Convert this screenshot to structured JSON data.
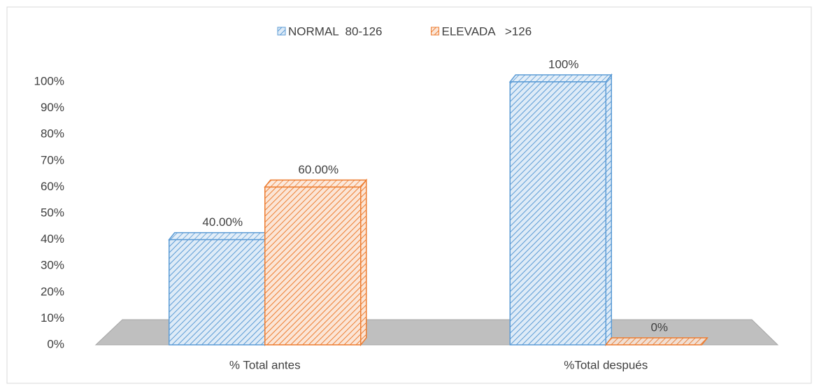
{
  "chart_data": {
    "type": "bar3d",
    "categories": [
      "% Total antes",
      "%Total después"
    ],
    "series": [
      {
        "name": "NORMAL  80-126",
        "color": "#5b9bd5",
        "values": [
          40,
          100
        ],
        "value_labels": [
          "40.00%",
          "100%"
        ]
      },
      {
        "name": "ELEVADA   >126",
        "color": "#ed7d31",
        "values": [
          60,
          0
        ],
        "value_labels": [
          "60.00%",
          "0%"
        ]
      }
    ],
    "ylim": [
      0,
      100
    ],
    "yticks": [
      {
        "value": 0,
        "label": "0%"
      },
      {
        "value": 10,
        "label": "10%"
      },
      {
        "value": 20,
        "label": "20%"
      },
      {
        "value": 30,
        "label": "30%"
      },
      {
        "value": 40,
        "label": "40%"
      },
      {
        "value": 50,
        "label": "50%"
      },
      {
        "value": 60,
        "label": "60%"
      },
      {
        "value": 70,
        "label": "70%"
      },
      {
        "value": 80,
        "label": "80%"
      },
      {
        "value": 90,
        "label": "90%"
      },
      {
        "value": 100,
        "label": "100%"
      }
    ],
    "legend": "top"
  }
}
